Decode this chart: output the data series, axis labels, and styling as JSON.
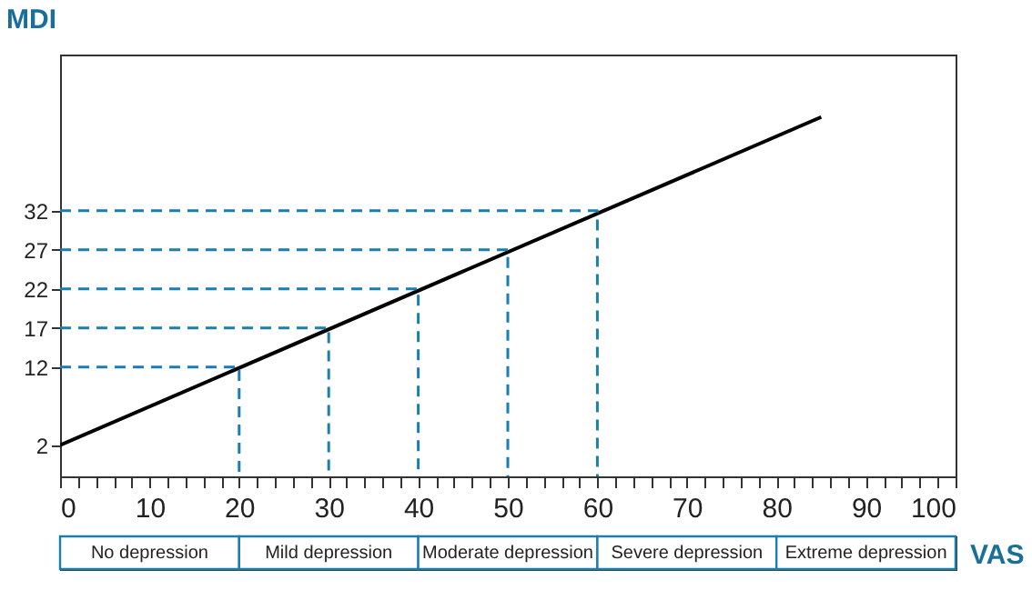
{
  "chart_data": {
    "type": "line",
    "xlabel": "VAS",
    "ylabel": "MDI",
    "xlim": [
      0,
      100
    ],
    "ylim": [
      -2,
      52
    ],
    "xticks": [
      0,
      {
        "value": 2,
        "label": null
      },
      {
        "value": 4,
        "label": null
      },
      {
        "value": 6,
        "label": null
      },
      {
        "value": 8,
        "label": null
      },
      10,
      {
        "value": 12,
        "label": null
      },
      {
        "value": 14,
        "label": null
      },
      {
        "value": 16,
        "label": null
      },
      {
        "value": 18,
        "label": null
      },
      20,
      {
        "value": 22,
        "label": null
      },
      {
        "value": 24,
        "label": null
      },
      {
        "value": 26,
        "label": null
      },
      {
        "value": 28,
        "label": null
      },
      30,
      {
        "value": 32,
        "label": null
      },
      {
        "value": 34,
        "label": null
      },
      {
        "value": 36,
        "label": null
      },
      {
        "value": 38,
        "label": null
      },
      40,
      {
        "value": 42,
        "label": null
      },
      {
        "value": 44,
        "label": null
      },
      {
        "value": 46,
        "label": null
      },
      {
        "value": 48,
        "label": null
      },
      50,
      {
        "value": 52,
        "label": null
      },
      {
        "value": 54,
        "label": null
      },
      {
        "value": 56,
        "label": null
      },
      {
        "value": 58,
        "label": null
      },
      60,
      {
        "value": 62,
        "label": null
      },
      {
        "value": 64,
        "label": null
      },
      {
        "value": 66,
        "label": null
      },
      {
        "value": 68,
        "label": null
      },
      70,
      {
        "value": 72,
        "label": null
      },
      {
        "value": 74,
        "label": null
      },
      {
        "value": 76,
        "label": null
      },
      {
        "value": 78,
        "label": null
      },
      80,
      {
        "value": 82,
        "label": null
      },
      {
        "value": 84,
        "label": null
      },
      {
        "value": 86,
        "label": null
      },
      {
        "value": 88,
        "label": null
      },
      90,
      {
        "value": 92,
        "label": null
      },
      {
        "value": 94,
        "label": null
      },
      {
        "value": 96,
        "label": null
      },
      {
        "value": 98,
        "label": null
      },
      100
    ],
    "yticks": [
      2,
      12,
      17,
      22,
      27,
      32
    ],
    "grid": false,
    "series": [
      {
        "color": "#000000",
        "x": [
          0,
          85
        ],
        "values": [
          2,
          44
        ]
      },
      {
        "color": "#1a7fb0",
        "line_style": "dashed",
        "x": [
          0,
          20,
          20
        ],
        "values": [
          12,
          12,
          -2
        ]
      },
      {
        "color": "#1a7fb0",
        "line_style": "dashed",
        "x": [
          0,
          30,
          30
        ],
        "values": [
          17,
          17,
          -2
        ]
      },
      {
        "color": "#1a7fb0",
        "line_style": "dashed",
        "x": [
          0,
          40,
          40
        ],
        "values": [
          22,
          22,
          -2
        ]
      },
      {
        "color": "#1a7fb0",
        "line_style": "dashed",
        "x": [
          0,
          50,
          50
        ],
        "values": [
          27,
          27,
          -2
        ]
      },
      {
        "color": "#1a7fb0",
        "line_style": "dashed",
        "x": [
          0,
          60,
          60
        ],
        "values": [
          32,
          32,
          -2
        ]
      }
    ],
    "annotations": [
      "No depression",
      "Mild depression",
      "Moderate depression",
      "Severe depression",
      "Extreme depression"
    ]
  }
}
